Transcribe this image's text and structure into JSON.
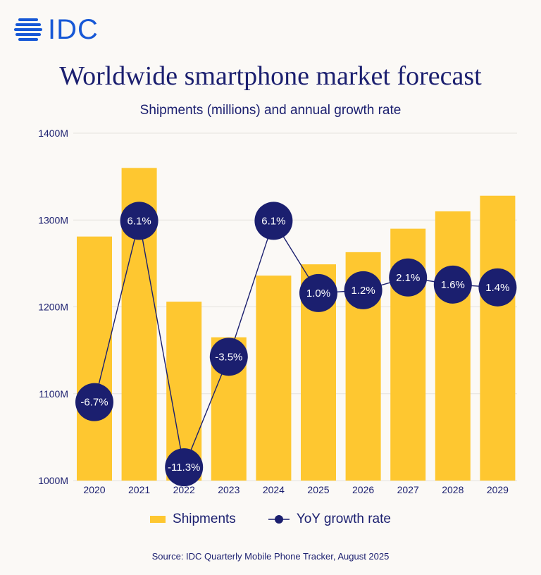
{
  "brand": {
    "logo_text": "IDC",
    "logo_color": "#1758d6"
  },
  "chart_data": {
    "type": "bar",
    "title": "Worldwide smartphone market forecast",
    "subtitle": "Shipments (millions) and annual growth rate",
    "categories": [
      "2020",
      "2021",
      "2022",
      "2023",
      "2024",
      "2025",
      "2026",
      "2027",
      "2028",
      "2029"
    ],
    "series": [
      {
        "name": "Shipments",
        "kind": "bar",
        "color": "#fec730",
        "values": [
          1281,
          1360,
          1206,
          1165,
          1236,
          1249,
          1263,
          1290,
          1310,
          1328
        ]
      },
      {
        "name": "YoY growth rate",
        "kind": "line",
        "color": "#1b1f6f",
        "values": [
          -6.7,
          6.1,
          -11.3,
          -3.5,
          6.1,
          1.0,
          1.2,
          2.1,
          1.6,
          1.4
        ],
        "labels": [
          "-6.7%",
          "6.1%",
          "-11.3%",
          "-3.5%",
          "6.1%",
          "1.0%",
          "1.2%",
          "2.1%",
          "1.6%",
          "1.4%"
        ]
      }
    ],
    "y_ticks": [
      "1400M",
      "1300M",
      "1200M",
      "1100M",
      "1000M"
    ],
    "ylim": [
      1000,
      1400
    ],
    "grid": true,
    "legend_position": "bottom"
  },
  "source": "Source:  IDC Quarterly Mobile Phone Tracker, August 2025"
}
